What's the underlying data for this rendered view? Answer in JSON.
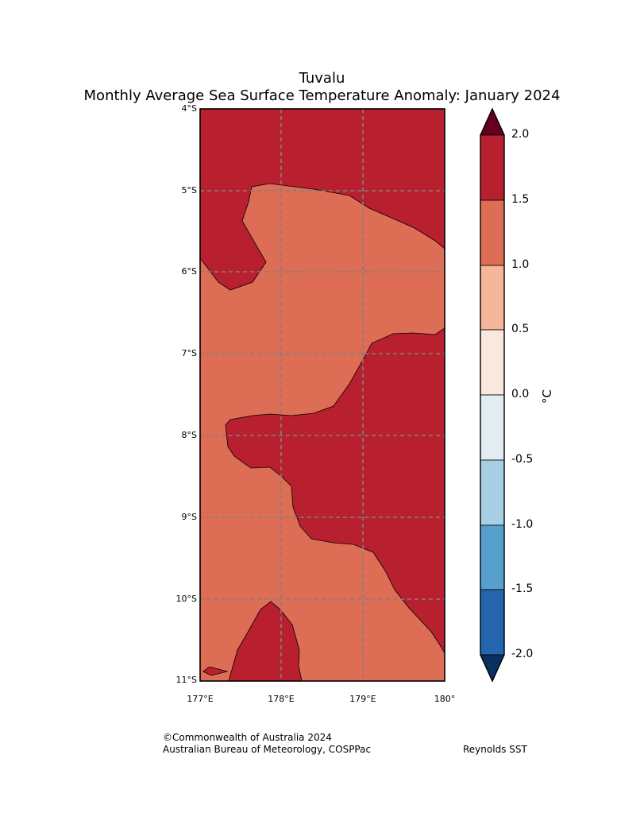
{
  "title": {
    "line1": "Tuvalu",
    "line2": "Monthly Average Sea Surface Temperature Anomaly: January 2024"
  },
  "axes": {
    "lat_labels": [
      "4°S",
      "5°S",
      "6°S",
      "7°S",
      "8°S",
      "9°S",
      "10°S",
      "11°S"
    ],
    "lon_labels": [
      "177°E",
      "178°E",
      "179°E",
      "180°"
    ]
  },
  "colorbar": {
    "ticks": [
      "2.0",
      "1.5",
      "1.0",
      "0.5",
      "0.0",
      "-0.5",
      "-1.0",
      "-1.5",
      "-2.0"
    ],
    "unit": "°C",
    "colors": {
      "above_max": "#67001f",
      "1.5_2.0": "#b82030",
      "1.0_1.5": "#dd6d55",
      "0.5_1.0": "#f5b699",
      "0.0_0.5": "#fae8de",
      "-0.5_0.0": "#e1edf3",
      "-1.0_-0.5": "#a8d0e4",
      "-1.5_-1.0": "#56a0cd",
      "-2.0_-1.5": "#2466ad",
      "below_min": "#093061"
    }
  },
  "footer": {
    "copyright": "©Commonwealth of Australia 2024",
    "agency": "Australian Bureau of Meteorology, COSPPac",
    "source": "Reynolds SST"
  }
}
